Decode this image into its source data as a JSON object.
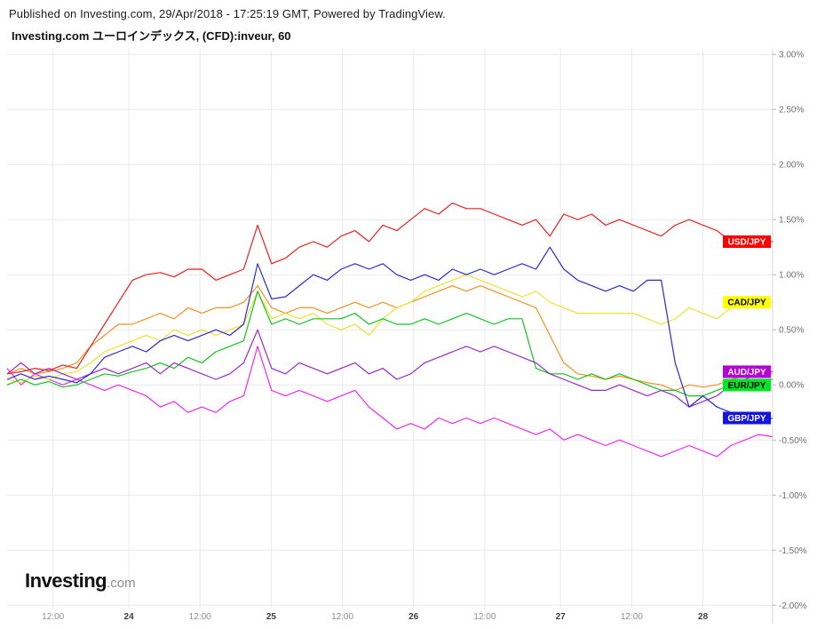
{
  "header": {
    "published_line": "Published on Investing.com, 29/Apr/2018 - 17:25:19 GMT, Powered by TradingView.",
    "title": "Investing.com ユーロインデックス, (CFD):inveur, 60"
  },
  "watermark": {
    "brand_bold": "Investing",
    "brand_suffix": ".com"
  },
  "chart_data": {
    "type": "line",
    "title": "Investing.com ユーロインデックス, (CFD):inveur, 60",
    "interval": "60",
    "legend_position": "right-edge-price-labels",
    "grid": true,
    "colors": {
      "grid": "#e9e9ec",
      "axis_line": "#d9d9de",
      "axis_tick": "#b5b5bc",
      "y_label_text": "#6f6f74",
      "x_label_minor": "#8f8f95",
      "x_label_major": "#3d3d42"
    },
    "y_axis": {
      "unit": "%",
      "range_top": 3.05,
      "range_bottom": -2.03,
      "ticks": [
        {
          "value": 3.0,
          "label": "3.00%"
        },
        {
          "value": 2.5,
          "label": "2.50%"
        },
        {
          "value": 2.0,
          "label": "2.00%"
        },
        {
          "value": 1.5,
          "label": "1.50%"
        },
        {
          "value": 1.0,
          "label": "1.00%"
        },
        {
          "value": 0.5,
          "label": "0.50%"
        },
        {
          "value": 0.0,
          "label": "0.00%"
        },
        {
          "value": -0.5,
          "label": "-0.50%"
        },
        {
          "value": -1.0,
          "label": "-1.00%"
        },
        {
          "value": -1.5,
          "label": "-1.50%"
        },
        {
          "value": -2.0,
          "label": "-2.00%"
        }
      ]
    },
    "x_axis": {
      "description": "hourly bars, 23-28 April 2018",
      "ticks": [
        {
          "label": "12:00",
          "f": 0.06,
          "major": false
        },
        {
          "label": "24",
          "f": 0.159,
          "major": true
        },
        {
          "label": "12:00",
          "f": 0.252,
          "major": false
        },
        {
          "label": "25",
          "f": 0.345,
          "major": true
        },
        {
          "label": "12:00",
          "f": 0.438,
          "major": false
        },
        {
          "label": "26",
          "f": 0.531,
          "major": true
        },
        {
          "label": "12:00",
          "f": 0.624,
          "major": false
        },
        {
          "label": "27",
          "f": 0.723,
          "major": true
        },
        {
          "label": "12:00",
          "f": 0.816,
          "major": false
        },
        {
          "label": "28",
          "f": 0.909,
          "major": true
        }
      ]
    },
    "series": [
      {
        "name": "series-magenta-unlabeled",
        "color": "#f326f3",
        "label_bg": null,
        "label_fg": null,
        "values": [
          0.15,
          0.0,
          0.1,
          0.05,
          0.0,
          0.05,
          0.0,
          -0.05,
          0.0,
          -0.05,
          -0.1,
          -0.2,
          -0.15,
          -0.25,
          -0.2,
          -0.25,
          -0.15,
          -0.1,
          0.35,
          -0.05,
          -0.1,
          -0.05,
          -0.1,
          -0.15,
          -0.1,
          -0.05,
          -0.2,
          -0.3,
          -0.4,
          -0.35,
          -0.4,
          -0.3,
          -0.35,
          -0.3,
          -0.35,
          -0.3,
          -0.35,
          -0.4,
          -0.45,
          -0.4,
          -0.5,
          -0.45,
          -0.5,
          -0.55,
          -0.5,
          -0.55,
          -0.6,
          -0.65,
          -0.6,
          -0.55,
          -0.6,
          -0.65,
          -0.55,
          -0.5,
          -0.45,
          -0.47
        ]
      },
      {
        "name": "series-orange-unlabeled",
        "color": "#f2921f",
        "label_bg": null,
        "label_fg": null,
        "values": [
          0.1,
          0.15,
          0.1,
          0.12,
          0.15,
          0.2,
          0.35,
          0.45,
          0.55,
          0.55,
          0.6,
          0.65,
          0.6,
          0.7,
          0.65,
          0.7,
          0.7,
          0.75,
          0.9,
          0.7,
          0.65,
          0.7,
          0.7,
          0.65,
          0.7,
          0.75,
          0.7,
          0.75,
          0.7,
          0.75,
          0.8,
          0.85,
          0.9,
          0.85,
          0.9,
          0.85,
          0.8,
          0.75,
          0.7,
          0.45,
          0.2,
          0.1,
          0.08,
          0.05,
          0.08,
          0.05,
          0.02,
          0.0,
          -0.05,
          0.0,
          -0.02,
          0.0,
          0.05,
          0.08,
          0.1,
          0.1
        ]
      },
      {
        "name": "CAD/JPY",
        "color": "#efe22e",
        "label_bg": "#ffff00",
        "label_fg": "#000000",
        "values": [
          0.05,
          0.02,
          0.08,
          0.05,
          0.1,
          0.12,
          0.2,
          0.3,
          0.35,
          0.4,
          0.45,
          0.4,
          0.5,
          0.45,
          0.5,
          0.45,
          0.5,
          0.55,
          0.85,
          0.6,
          0.65,
          0.6,
          0.65,
          0.55,
          0.5,
          0.55,
          0.45,
          0.6,
          0.7,
          0.75,
          0.85,
          0.9,
          0.95,
          1.0,
          0.95,
          0.9,
          0.85,
          0.8,
          0.85,
          0.75,
          0.7,
          0.65,
          0.65,
          0.65,
          0.65,
          0.65,
          0.6,
          0.55,
          0.6,
          0.7,
          0.65,
          0.6,
          0.7,
          0.75,
          0.75,
          0.75
        ]
      },
      {
        "name": "EUR/JPY",
        "color": "#11c41e",
        "label_bg": "#00e626",
        "label_fg": "#000000",
        "values": [
          0.0,
          0.05,
          0.0,
          0.03,
          -0.02,
          0.0,
          0.05,
          0.1,
          0.08,
          0.12,
          0.15,
          0.2,
          0.15,
          0.25,
          0.2,
          0.3,
          0.35,
          0.4,
          0.85,
          0.55,
          0.6,
          0.55,
          0.6,
          0.6,
          0.6,
          0.65,
          0.55,
          0.6,
          0.55,
          0.55,
          0.6,
          0.55,
          0.6,
          0.65,
          0.6,
          0.55,
          0.6,
          0.6,
          0.15,
          0.1,
          0.1,
          0.05,
          0.1,
          0.05,
          0.1,
          0.05,
          0.0,
          -0.05,
          -0.05,
          -0.1,
          -0.1,
          -0.05,
          0.0,
          0.05,
          0.05,
          0.05
        ]
      },
      {
        "name": "AUD/JPY",
        "color": "#9a28c9",
        "label_bg": "#b400d8",
        "label_fg": "#ffffff",
        "values": [
          0.1,
          0.2,
          0.1,
          0.15,
          0.1,
          0.05,
          0.1,
          0.15,
          0.1,
          0.15,
          0.2,
          0.1,
          0.2,
          0.15,
          0.1,
          0.05,
          0.1,
          0.2,
          0.5,
          0.15,
          0.1,
          0.2,
          0.15,
          0.1,
          0.15,
          0.2,
          0.1,
          0.15,
          0.05,
          0.1,
          0.2,
          0.25,
          0.3,
          0.35,
          0.3,
          0.35,
          0.3,
          0.25,
          0.2,
          0.1,
          0.05,
          0.0,
          -0.05,
          -0.05,
          0.0,
          -0.05,
          -0.1,
          -0.05,
          -0.1,
          -0.2,
          -0.15,
          -0.1,
          0.0,
          0.05,
          0.1,
          0.12
        ]
      },
      {
        "name": "GBP/JPY",
        "color": "#2b2bd0",
        "label_bg": "#1414e0",
        "label_fg": "#ffffff",
        "values": [
          0.05,
          0.1,
          0.05,
          0.08,
          0.05,
          0.02,
          0.1,
          0.25,
          0.3,
          0.35,
          0.3,
          0.4,
          0.45,
          0.4,
          0.45,
          0.5,
          0.45,
          0.55,
          1.1,
          0.78,
          0.8,
          0.9,
          1.0,
          0.95,
          1.05,
          1.1,
          1.05,
          1.1,
          1.0,
          0.95,
          1.0,
          0.95,
          1.05,
          1.0,
          1.05,
          1.0,
          1.05,
          1.1,
          1.05,
          1.25,
          1.05,
          0.95,
          0.9,
          0.85,
          0.9,
          0.85,
          0.95,
          0.95,
          0.2,
          -0.2,
          -0.1,
          -0.2,
          -0.25,
          -0.3,
          -0.35,
          -0.3
        ]
      },
      {
        "name": "USD/JPY",
        "color": "#ea1f1f",
        "label_bg": "#ff0000",
        "label_fg": "#ffffff",
        "values": [
          0.1,
          0.12,
          0.15,
          0.13,
          0.18,
          0.15,
          0.35,
          0.55,
          0.75,
          0.95,
          1.0,
          1.02,
          0.98,
          1.05,
          1.05,
          0.95,
          1.0,
          1.05,
          1.45,
          1.1,
          1.15,
          1.25,
          1.3,
          1.25,
          1.35,
          1.4,
          1.3,
          1.45,
          1.4,
          1.5,
          1.6,
          1.55,
          1.65,
          1.6,
          1.6,
          1.55,
          1.5,
          1.45,
          1.5,
          1.35,
          1.55,
          1.5,
          1.55,
          1.45,
          1.5,
          1.45,
          1.4,
          1.35,
          1.45,
          1.5,
          1.45,
          1.4,
          1.3,
          1.25,
          1.3,
          1.3
        ]
      }
    ],
    "price_labels_order": [
      "USD/JPY",
      "CAD/JPY",
      "AUD/JPY",
      "EUR/JPY",
      "GBP/JPY"
    ]
  }
}
